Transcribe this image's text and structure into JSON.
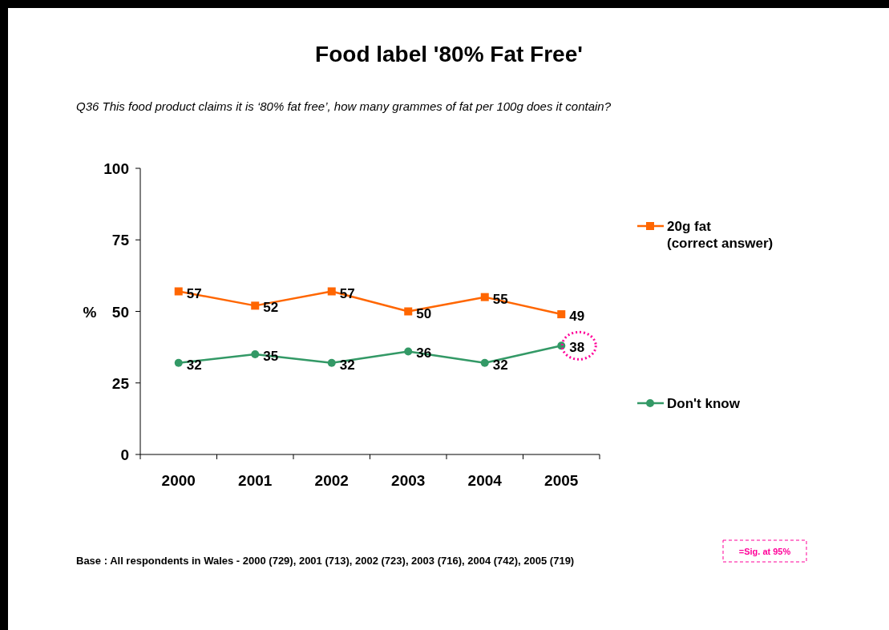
{
  "chart_data": {
    "type": "line",
    "title": "Food label '80% Fat Free'",
    "subtitle": "Q36  This food product claims it is ‘80% fat free’, how many grammes of fat per 100g does it contain?",
    "ylabel": "%",
    "categories": [
      "2000",
      "2001",
      "2002",
      "2003",
      "2004",
      "2005"
    ],
    "series": [
      {
        "name": "20g fat (correct answer)",
        "color": "#ff6600",
        "marker": "square",
        "values": [
          57,
          52,
          57,
          50,
          55,
          49
        ]
      },
      {
        "name": "Don't know",
        "color": "#339966",
        "marker": "circle",
        "values": [
          32,
          35,
          32,
          36,
          32,
          38
        ]
      }
    ],
    "ylim": [
      0,
      100
    ],
    "yticks": [
      0,
      25,
      50,
      75,
      100
    ],
    "data_labels": true,
    "legend": "right",
    "grid": false,
    "annotations": [
      "Base : All respondents in Wales - 2000 (729), 2001 (713), 2002 (723), 2003 (716), 2004 (742), 2005 (719)",
      "=Sig. at 95%"
    ]
  }
}
